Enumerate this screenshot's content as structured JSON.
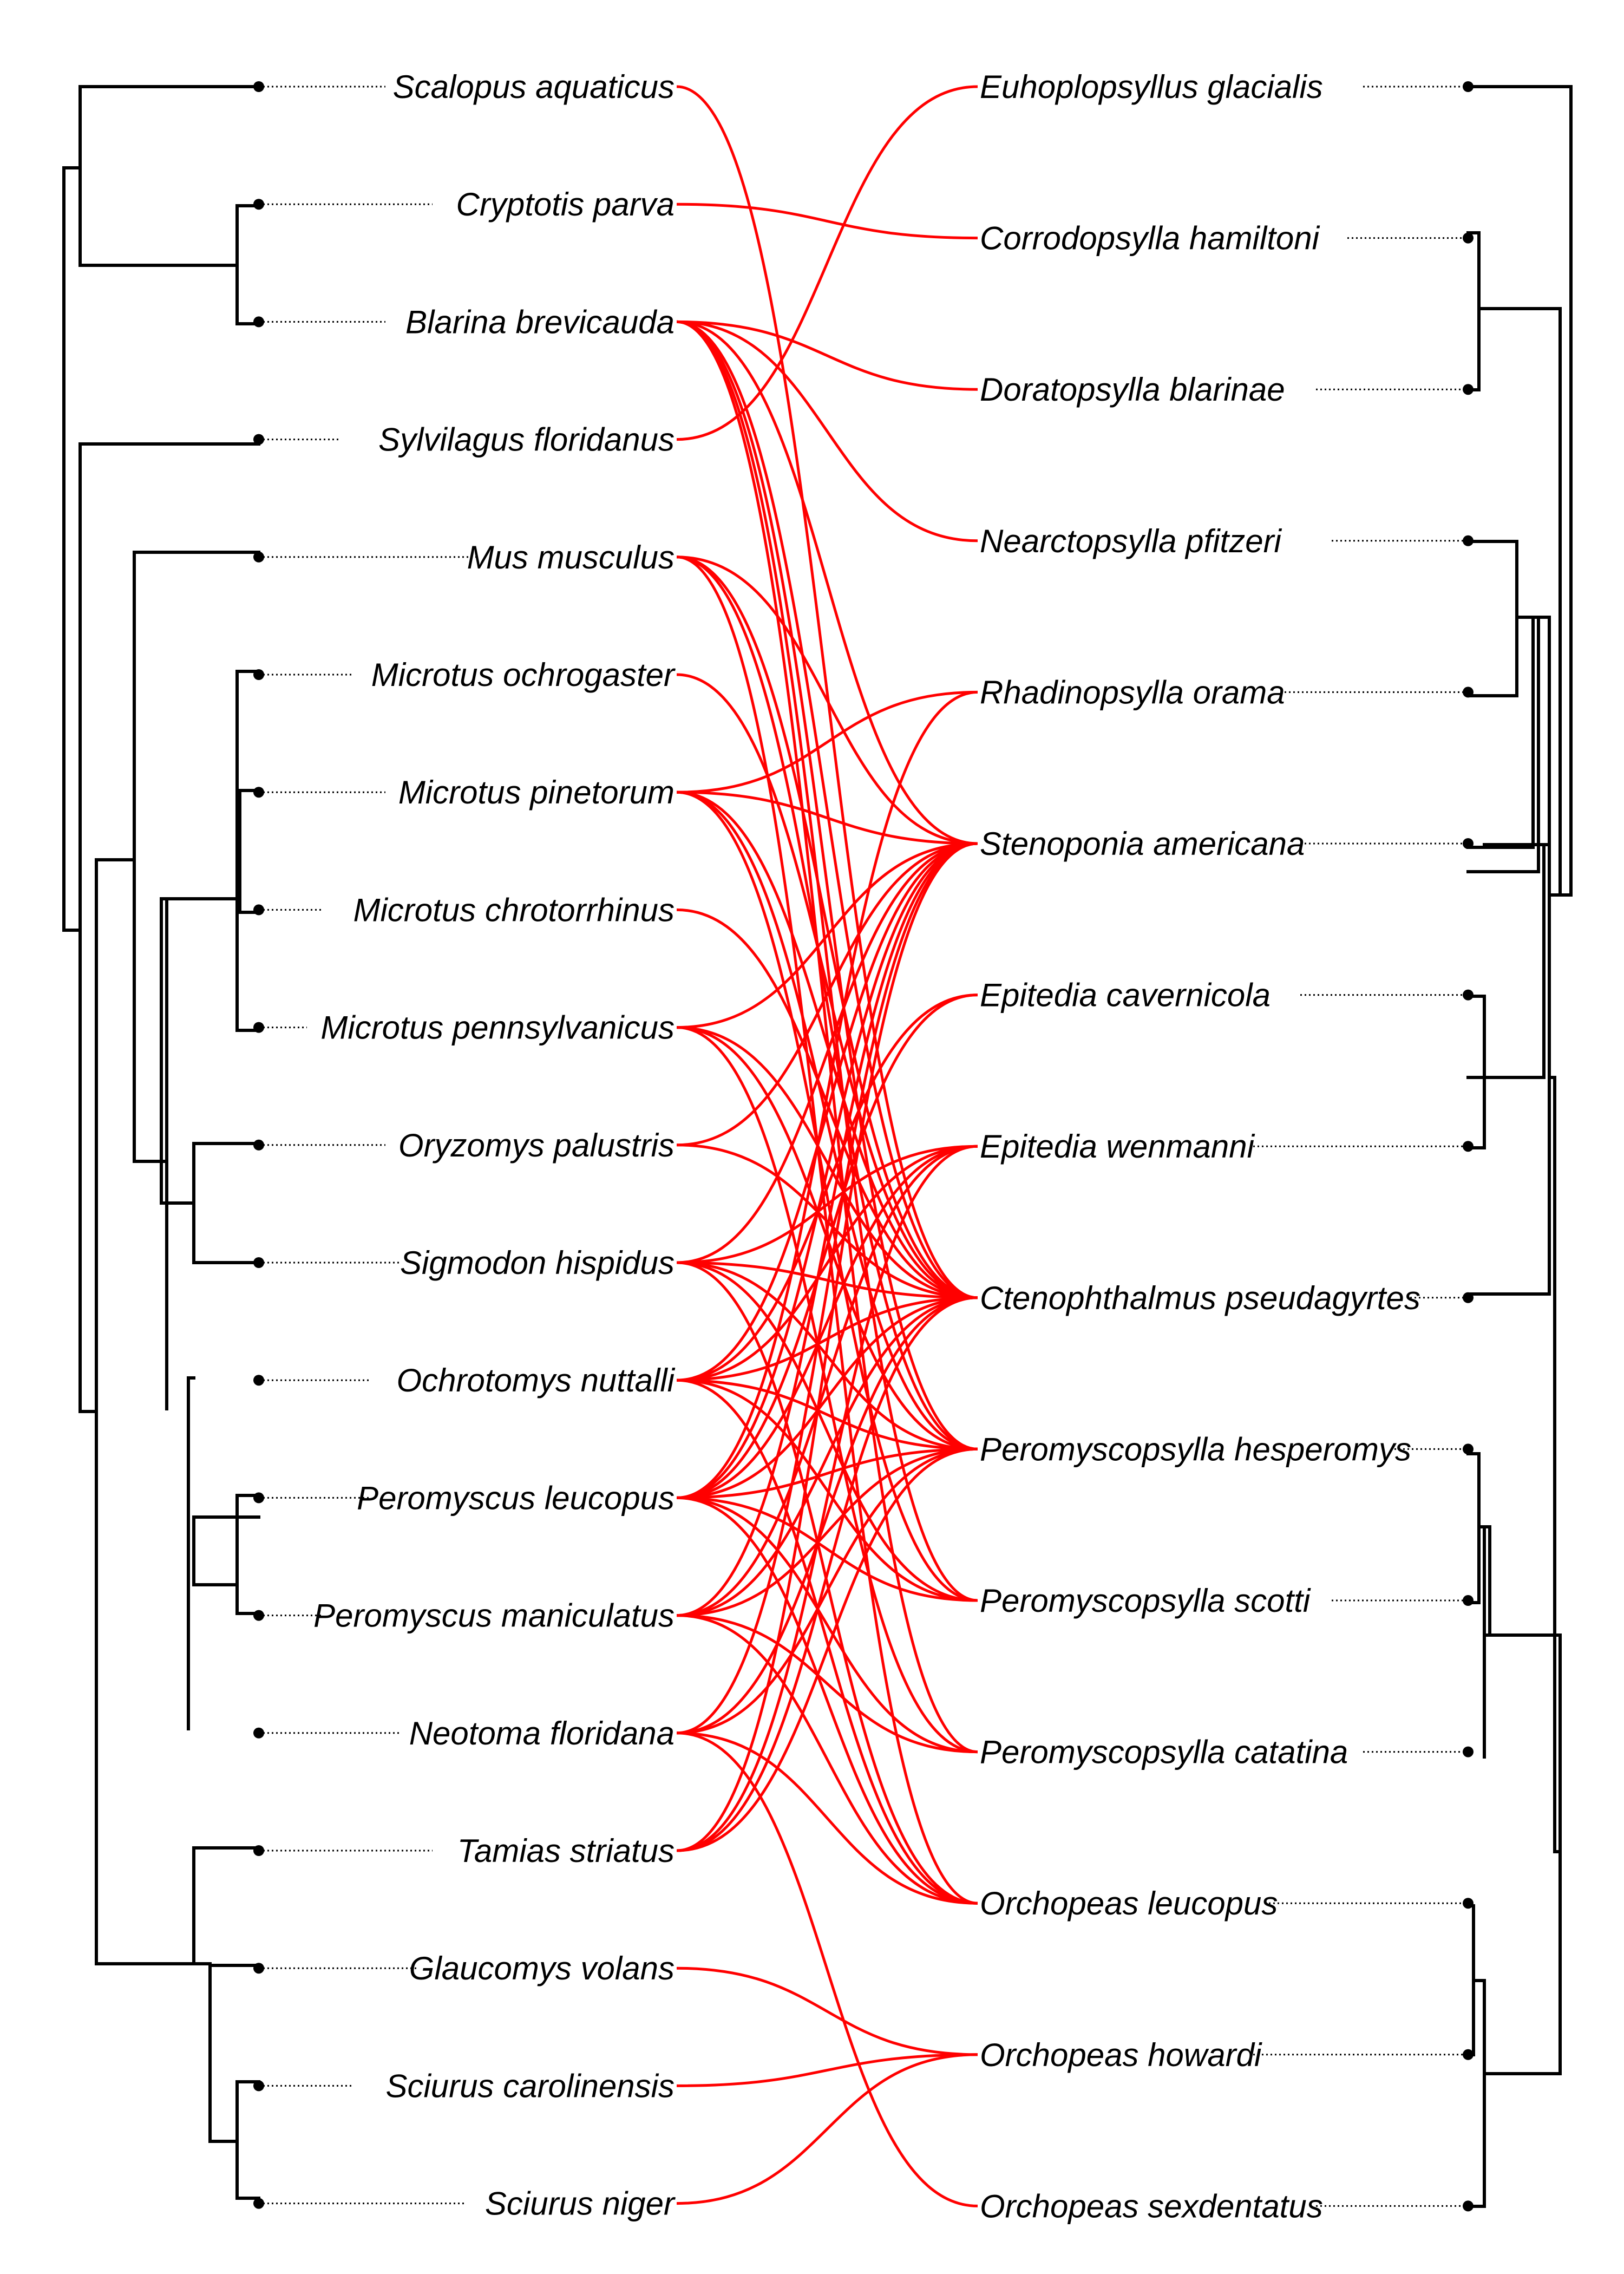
{
  "colors": {
    "branch": "#000000",
    "association": "#ff0000",
    "background": "#ffffff"
  },
  "hosts": [
    "Scalopus aquaticus",
    "Cryptotis parva",
    "Blarina brevicauda",
    "Sylvilagus floridanus",
    "Mus musculus",
    "Microtus ochrogaster",
    "Microtus pinetorum",
    "Microtus chrotorrhinus",
    "Microtus pennsylvanicus",
    "Oryzomys palustris",
    "Sigmodon hispidus",
    "Ochrotomys nuttalli",
    "Peromyscus leucopus",
    "Peromyscus maniculatus",
    "Neotoma floridana",
    "Tamias striatus",
    "Glaucomys volans",
    "Sciurus carolinensis",
    "Sciurus niger"
  ],
  "parasites": [
    "Euhoplopsyllus glacialis",
    "Corrodopsylla hamiltoni",
    "Doratopsylla blarinae",
    "Nearctopsylla pfitzeri",
    "Rhadinopsylla orama",
    "Stenoponia americana",
    "Epitedia cavernicola",
    "Epitedia wenmanni",
    "Ctenophthalmus pseudagyrtes",
    "Peromyscopsylla hesperomys",
    "Peromyscopsylla scotti",
    "Peromyscopsylla catatina",
    "Orchopeas leucopus",
    "Orchopeas howardi",
    "Orchopeas sexdentatus"
  ],
  "associations": [
    [
      "Scalopus aquaticus",
      "Ctenophthalmus pseudagyrtes"
    ],
    [
      "Cryptotis parva",
      "Corrodopsylla hamiltoni"
    ],
    [
      "Blarina brevicauda",
      "Doratopsylla blarinae"
    ],
    [
      "Blarina brevicauda",
      "Nearctopsylla pfitzeri"
    ],
    [
      "Blarina brevicauda",
      "Stenoponia americana"
    ],
    [
      "Blarina brevicauda",
      "Ctenophthalmus pseudagyrtes"
    ],
    [
      "Blarina brevicauda",
      "Peromyscopsylla hesperomys"
    ],
    [
      "Blarina brevicauda",
      "Peromyscopsylla scotti"
    ],
    [
      "Blarina brevicauda",
      "Peromyscopsylla catatina"
    ],
    [
      "Sylvilagus floridanus",
      "Euhoplopsyllus glacialis"
    ],
    [
      "Mus musculus",
      "Stenoponia americana"
    ],
    [
      "Mus musculus",
      "Ctenophthalmus pseudagyrtes"
    ],
    [
      "Mus musculus",
      "Peromyscopsylla hesperomys"
    ],
    [
      "Mus musculus",
      "Orchopeas leucopus"
    ],
    [
      "Microtus ochrogaster",
      "Ctenophthalmus pseudagyrtes"
    ],
    [
      "Microtus pinetorum",
      "Rhadinopsylla orama"
    ],
    [
      "Microtus pinetorum",
      "Stenoponia americana"
    ],
    [
      "Microtus pinetorum",
      "Ctenophthalmus pseudagyrtes"
    ],
    [
      "Microtus pinetorum",
      "Peromyscopsylla hesperomys"
    ],
    [
      "Microtus pinetorum",
      "Peromyscopsylla scotti"
    ],
    [
      "Microtus chrotorrhinus",
      "Ctenophthalmus pseudagyrtes"
    ],
    [
      "Microtus pennsylvanicus",
      "Stenoponia americana"
    ],
    [
      "Microtus pennsylvanicus",
      "Ctenophthalmus pseudagyrtes"
    ],
    [
      "Microtus pennsylvanicus",
      "Peromyscopsylla hesperomys"
    ],
    [
      "Microtus pennsylvanicus",
      "Peromyscopsylla catatina"
    ],
    [
      "Oryzomys palustris",
      "Stenoponia americana"
    ],
    [
      "Oryzomys palustris",
      "Ctenophthalmus pseudagyrtes"
    ],
    [
      "Sigmodon hispidus",
      "Stenoponia americana"
    ],
    [
      "Sigmodon hispidus",
      "Epitedia wenmanni"
    ],
    [
      "Sigmodon hispidus",
      "Ctenophthalmus pseudagyrtes"
    ],
    [
      "Sigmodon hispidus",
      "Peromyscopsylla hesperomys"
    ],
    [
      "Sigmodon hispidus",
      "Peromyscopsylla scotti"
    ],
    [
      "Sigmodon hispidus",
      "Orchopeas leucopus"
    ],
    [
      "Ochrotomys nuttalli",
      "Stenoponia americana"
    ],
    [
      "Ochrotomys nuttalli",
      "Epitedia cavernicola"
    ],
    [
      "Ochrotomys nuttalli",
      "Epitedia wenmanni"
    ],
    [
      "Ochrotomys nuttalli",
      "Ctenophthalmus pseudagyrtes"
    ],
    [
      "Ochrotomys nuttalli",
      "Peromyscopsylla hesperomys"
    ],
    [
      "Ochrotomys nuttalli",
      "Peromyscopsylla scotti"
    ],
    [
      "Ochrotomys nuttalli",
      "Orchopeas leucopus"
    ],
    [
      "Peromyscus leucopus",
      "Rhadinopsylla orama"
    ],
    [
      "Peromyscus leucopus",
      "Stenoponia americana"
    ],
    [
      "Peromyscus leucopus",
      "Epitedia cavernicola"
    ],
    [
      "Peromyscus leucopus",
      "Epitedia wenmanni"
    ],
    [
      "Peromyscus leucopus",
      "Ctenophthalmus pseudagyrtes"
    ],
    [
      "Peromyscus leucopus",
      "Peromyscopsylla hesperomys"
    ],
    [
      "Peromyscus leucopus",
      "Peromyscopsylla scotti"
    ],
    [
      "Peromyscus leucopus",
      "Peromyscopsylla catatina"
    ],
    [
      "Peromyscus leucopus",
      "Orchopeas leucopus"
    ],
    [
      "Peromyscus maniculatus",
      "Stenoponia americana"
    ],
    [
      "Peromyscus maniculatus",
      "Epitedia wenmanni"
    ],
    [
      "Peromyscus maniculatus",
      "Ctenophthalmus pseudagyrtes"
    ],
    [
      "Peromyscus maniculatus",
      "Peromyscopsylla hesperomys"
    ],
    [
      "Peromyscus maniculatus",
      "Peromyscopsylla catatina"
    ],
    [
      "Peromyscus maniculatus",
      "Orchopeas leucopus"
    ],
    [
      "Neotoma floridana",
      "Stenoponia americana"
    ],
    [
      "Neotoma floridana",
      "Ctenophthalmus pseudagyrtes"
    ],
    [
      "Neotoma floridana",
      "Peromyscopsylla hesperomys"
    ],
    [
      "Neotoma floridana",
      "Orchopeas leucopus"
    ],
    [
      "Neotoma floridana",
      "Orchopeas sexdentatus"
    ],
    [
      "Tamias striatus",
      "Stenoponia americana"
    ],
    [
      "Tamias striatus",
      "Epitedia wenmanni"
    ],
    [
      "Tamias striatus",
      "Ctenophthalmus pseudagyrtes"
    ],
    [
      "Tamias striatus",
      "Peromyscopsylla hesperomys"
    ],
    [
      "Glaucomys volans",
      "Orchopeas howardi"
    ],
    [
      "Sciurus carolinensis",
      "Orchopeas howardi"
    ],
    [
      "Sciurus niger",
      "Orchopeas howardi"
    ]
  ]
}
